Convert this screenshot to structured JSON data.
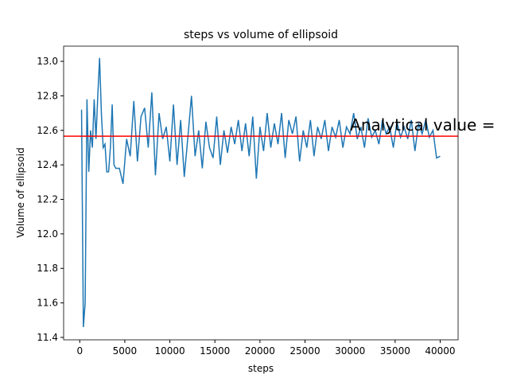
{
  "chart_data": {
    "type": "line",
    "title": "steps vs volume of ellipsoid",
    "xlabel": "steps",
    "ylabel": "Volume of ellipsoid",
    "x": [
      200,
      400,
      600,
      800,
      1000,
      1200,
      1400,
      1600,
      1800,
      2000,
      2200,
      2400,
      2600,
      2800,
      3000,
      3200,
      3400,
      3600,
      3800,
      4000,
      4400,
      4800,
      5200,
      5600,
      6000,
      6400,
      6800,
      7200,
      7600,
      8000,
      8400,
      8800,
      9200,
      9600,
      10000,
      10400,
      10800,
      11200,
      11600,
      12000,
      12400,
      12800,
      13200,
      13600,
      14000,
      14400,
      14800,
      15200,
      15600,
      16000,
      16400,
      16800,
      17200,
      17600,
      18000,
      18400,
      18800,
      19200,
      19600,
      20000,
      20400,
      20800,
      21200,
      21600,
      22000,
      22400,
      22800,
      23200,
      23600,
      24000,
      24400,
      24800,
      25200,
      25600,
      26000,
      26400,
      26800,
      27200,
      27600,
      28000,
      28400,
      28800,
      29200,
      29600,
      30000,
      30400,
      30800,
      31200,
      31600,
      32000,
      32400,
      32800,
      33200,
      33600,
      34000,
      34400,
      34800,
      35200,
      35600,
      36000,
      36400,
      36800,
      37200,
      37600,
      38000,
      38400,
      38800,
      39200,
      39600,
      40000
    ],
    "series": [
      {
        "color": "#1f77b4",
        "values": [
          12.72,
          11.46,
          11.6,
          12.78,
          12.36,
          12.6,
          12.5,
          12.78,
          12.55,
          12.8,
          13.02,
          12.7,
          12.5,
          12.52,
          12.36,
          12.36,
          12.5,
          12.75,
          12.4,
          12.38,
          12.38,
          12.29,
          12.55,
          12.45,
          12.77,
          12.42,
          12.68,
          12.73,
          12.5,
          12.82,
          12.34,
          12.7,
          12.55,
          12.62,
          12.42,
          12.75,
          12.4,
          12.66,
          12.33,
          12.56,
          12.8,
          12.45,
          12.6,
          12.38,
          12.65,
          12.5,
          12.44,
          12.68,
          12.4,
          12.6,
          12.47,
          12.62,
          12.52,
          12.66,
          12.48,
          12.64,
          12.45,
          12.68,
          12.32,
          12.62,
          12.48,
          12.7,
          12.5,
          12.64,
          12.52,
          12.7,
          12.44,
          12.66,
          12.58,
          12.68,
          12.42,
          12.6,
          12.5,
          12.66,
          12.45,
          12.62,
          12.55,
          12.66,
          12.48,
          12.62,
          12.56,
          12.66,
          12.5,
          12.62,
          12.58,
          12.7,
          12.55,
          12.62,
          12.5,
          12.67,
          12.56,
          12.6,
          12.52,
          12.66,
          12.58,
          12.62,
          12.5,
          12.65,
          12.56,
          12.62,
          12.55,
          12.66,
          12.48,
          12.64,
          12.58,
          12.66,
          12.56,
          12.6,
          12.44,
          12.45
        ]
      }
    ],
    "hline": {
      "value": 12.566,
      "color": "#ff0000"
    },
    "annotation": {
      "text": "Analytical value =",
      "x": 30000,
      "y": 12.6
    },
    "xlim": [
      -1790,
      41990
    ],
    "xticks": [
      0,
      5000,
      10000,
      15000,
      20000,
      25000,
      30000,
      35000,
      40000
    ],
    "ylim": [
      11.386,
      13.088
    ],
    "yticks": [
      11.4,
      11.6,
      11.8,
      {
        "value": 12,
        "label": "12.0"
      },
      12.2,
      12.4,
      12.6,
      12.8,
      {
        "value": 13,
        "label": "13.0"
      }
    ]
  }
}
